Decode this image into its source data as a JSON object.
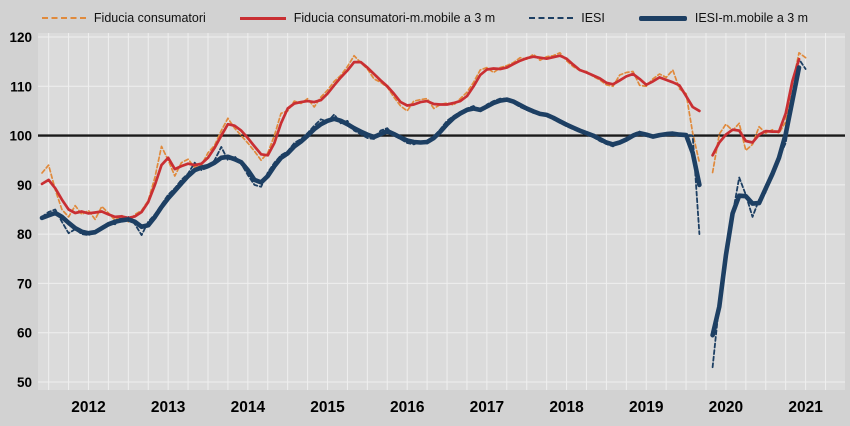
{
  "legend": {
    "items": [
      {
        "label": "Fiducia consumatori",
        "color": "#e08a3c",
        "style": "dashed"
      },
      {
        "label": "Fiducia consumatori-m.mobile a 3 m",
        "color": "#c92f33",
        "style": "solid"
      },
      {
        "label": "IESI",
        "color": "#1d3f63",
        "style": "dashed"
      },
      {
        "label": "IESI-m.mobile a 3 m",
        "color": "#1d3f63",
        "style": "solid"
      }
    ]
  },
  "chart_data": {
    "type": "line",
    "title": "",
    "frequency": "monthly",
    "x_start": "2011-12",
    "x_end": "2021-07",
    "data_gap": "2020-04",
    "ylim": [
      50,
      120
    ],
    "yticks": [
      50,
      60,
      70,
      80,
      90,
      100,
      110,
      120
    ],
    "baseline": 100,
    "x_tick_labels": [
      "2012",
      "2013",
      "2014",
      "2015",
      "2016",
      "2017",
      "2018",
      "2019",
      "2020",
      "2021"
    ],
    "grid": {
      "vertical_every_months": 3,
      "color": "#efefef"
    },
    "plot_bg": "#dbdbdb",
    "outer_bg": "#d2d2d2",
    "baseline_color": "#1a1a1a",
    "series": [
      {
        "name": "Fiducia consumatori",
        "style": "dashed",
        "color": "#e08a3c",
        "width": 1.7,
        "values": [
          92.4,
          94.0,
          89.0,
          85.0,
          83.5,
          85.8,
          84.0,
          84.8,
          83.0,
          85.6,
          84.3,
          82.8,
          83.8,
          82.5,
          84.0,
          84.8,
          86.8,
          91.5,
          97.8,
          95.0,
          91.8,
          94.5,
          95.2,
          93.5,
          94.0,
          96.5,
          98.0,
          101.0,
          103.5,
          101.5,
          100.0,
          98.5,
          96.8,
          95.0,
          96.5,
          100.0,
          104.5,
          105.0,
          107.0,
          106.5,
          107.5,
          105.8,
          107.8,
          109.2,
          111.0,
          112.2,
          114.0,
          116.2,
          114.8,
          113.5,
          111.5,
          110.8,
          109.8,
          107.8,
          106.0,
          105.0,
          107.0,
          107.3,
          107.5,
          105.5,
          106.3,
          106.6,
          106.2,
          107.5,
          108.8,
          110.8,
          113.3,
          113.8,
          112.8,
          113.8,
          114.2,
          114.8,
          115.8,
          115.5,
          116.5,
          115.3,
          116.0,
          116.2,
          116.8,
          115.2,
          114.0,
          113.2,
          113.0,
          112.0,
          111.3,
          110.3,
          110.0,
          112.3,
          112.8,
          113.0,
          110.2,
          110.0,
          111.5,
          112.5,
          111.8,
          113.3,
          109.5,
          108.5,
          100.5,
          94.5,
          null,
          92.5,
          100.3,
          102.3,
          101.0,
          102.5,
          97.0,
          98.2,
          101.8,
          100.5,
          101.2,
          100.5,
          102.8,
          110.3,
          116.8,
          115.8
        ]
      },
      {
        "name": "Fiducia consumatori-m.mobile a 3 m",
        "style": "solid",
        "color": "#c92f33",
        "width": 2.7,
        "values": [
          90.2,
          91.0,
          89.3,
          87.0,
          85.0,
          84.3,
          84.6,
          84.2,
          84.4,
          84.6,
          84.0,
          83.5,
          83.6,
          83.3,
          83.6,
          84.5,
          86.5,
          90.0,
          94.0,
          95.5,
          93.2,
          93.8,
          94.3,
          94.0,
          94.3,
          95.5,
          97.5,
          100.0,
          102.3,
          102.0,
          101.0,
          99.5,
          97.8,
          96.2,
          96.0,
          98.5,
          102.5,
          105.5,
          106.5,
          106.8,
          107.0,
          106.8,
          107.2,
          108.5,
          110.2,
          111.8,
          113.2,
          114.9,
          114.9,
          113.8,
          112.5,
          111.2,
          110.0,
          108.5,
          106.8,
          106.1,
          106.3,
          106.8,
          107.0,
          106.4,
          106.3,
          106.3,
          106.6,
          107.0,
          108.0,
          110.0,
          112.3,
          113.4,
          113.6,
          113.5,
          113.8,
          114.5,
          115.2,
          115.7,
          116.0,
          115.8,
          115.6,
          115.9,
          116.2,
          115.6,
          114.4,
          113.3,
          112.8,
          112.2,
          111.6,
          110.7,
          110.4,
          111.2,
          112.0,
          112.5,
          111.5,
          110.3,
          111.0,
          111.8,
          111.3,
          110.8,
          110.2,
          108.0,
          105.8,
          105.0,
          null,
          96.0,
          98.6,
          100.2,
          101.2,
          101.0,
          98.9,
          98.6,
          100.2,
          100.9,
          100.8,
          100.8,
          104.5,
          111.0,
          115.5,
          null
        ]
      },
      {
        "name": "IESI",
        "style": "dashed",
        "color": "#1d3f63",
        "width": 1.8,
        "values": [
          83.5,
          84.5,
          85.0,
          82.5,
          80.2,
          81.0,
          80.0,
          79.8,
          80.5,
          81.5,
          82.3,
          82.0,
          83.5,
          83.5,
          82.0,
          79.8,
          82.5,
          84.0,
          86.0,
          88.0,
          89.3,
          91.0,
          92.3,
          94.5,
          93.0,
          93.5,
          95.0,
          97.7,
          95.0,
          95.8,
          94.3,
          92.0,
          90.0,
          89.6,
          92.5,
          94.5,
          96.0,
          96.8,
          98.5,
          99.3,
          100.5,
          102.0,
          103.3,
          102.8,
          104.3,
          102.5,
          103.0,
          101.0,
          100.3,
          99.5,
          99.3,
          101.0,
          101.5,
          100.0,
          99.3,
          98.5,
          98.2,
          98.8,
          98.4,
          99.8,
          101.3,
          103.0,
          104.0,
          104.8,
          105.5,
          106.0,
          104.8,
          106.3,
          107.0,
          107.5,
          107.5,
          106.6,
          105.8,
          105.2,
          104.6,
          104.3,
          104.4,
          103.3,
          102.6,
          101.9,
          101.3,
          100.7,
          100.2,
          99.7,
          98.9,
          98.3,
          97.8,
          98.8,
          99.4,
          100.3,
          100.8,
          99.9,
          99.6,
          100.3,
          100.4,
          100.5,
          100.1,
          100.2,
          100.0,
          80.0,
          null,
          53.0,
          66.0,
          77.0,
          84.0,
          91.5,
          88.0,
          83.5,
          87.0,
          88.5,
          92.5,
          95.5,
          98.5,
          107.0,
          115.5,
          113.5
        ]
      },
      {
        "name": "IESI-m.mobile a 3 m",
        "style": "solid",
        "color": "#1d3f63",
        "width": 4.6,
        "values": [
          83.3,
          83.8,
          84.3,
          83.5,
          82.3,
          81.2,
          80.5,
          80.2,
          80.4,
          81.2,
          82.0,
          82.5,
          82.8,
          83.0,
          82.5,
          81.5,
          81.8,
          83.5,
          85.5,
          87.3,
          88.8,
          90.3,
          91.8,
          93.0,
          93.5,
          93.8,
          94.5,
          95.5,
          95.7,
          95.2,
          94.6,
          93.0,
          91.0,
          90.5,
          91.8,
          93.8,
          95.5,
          96.4,
          97.8,
          98.8,
          100.0,
          101.3,
          102.3,
          103.0,
          103.4,
          103.0,
          102.3,
          101.5,
          100.8,
          100.2,
          99.7,
          100.3,
          100.9,
          100.3,
          99.6,
          99.0,
          98.7,
          98.6,
          98.7,
          99.5,
          100.8,
          102.3,
          103.6,
          104.5,
          105.2,
          105.5,
          105.2,
          105.9,
          106.6,
          107.1,
          107.3,
          106.9,
          106.2,
          105.5,
          104.9,
          104.4,
          104.2,
          103.6,
          102.9,
          102.2,
          101.6,
          101.0,
          100.5,
          100.0,
          99.3,
          98.6,
          98.2,
          98.6,
          99.2,
          100.0,
          100.5,
          100.2,
          99.8,
          100.1,
          100.3,
          100.4,
          100.2,
          100.1,
          96.5,
          90.0,
          null,
          59.5,
          65.3,
          75.7,
          84.2,
          87.8,
          87.7,
          86.2,
          86.3,
          89.3,
          92.2,
          95.5,
          100.3,
          107.0,
          113.8,
          null
        ]
      }
    ]
  }
}
